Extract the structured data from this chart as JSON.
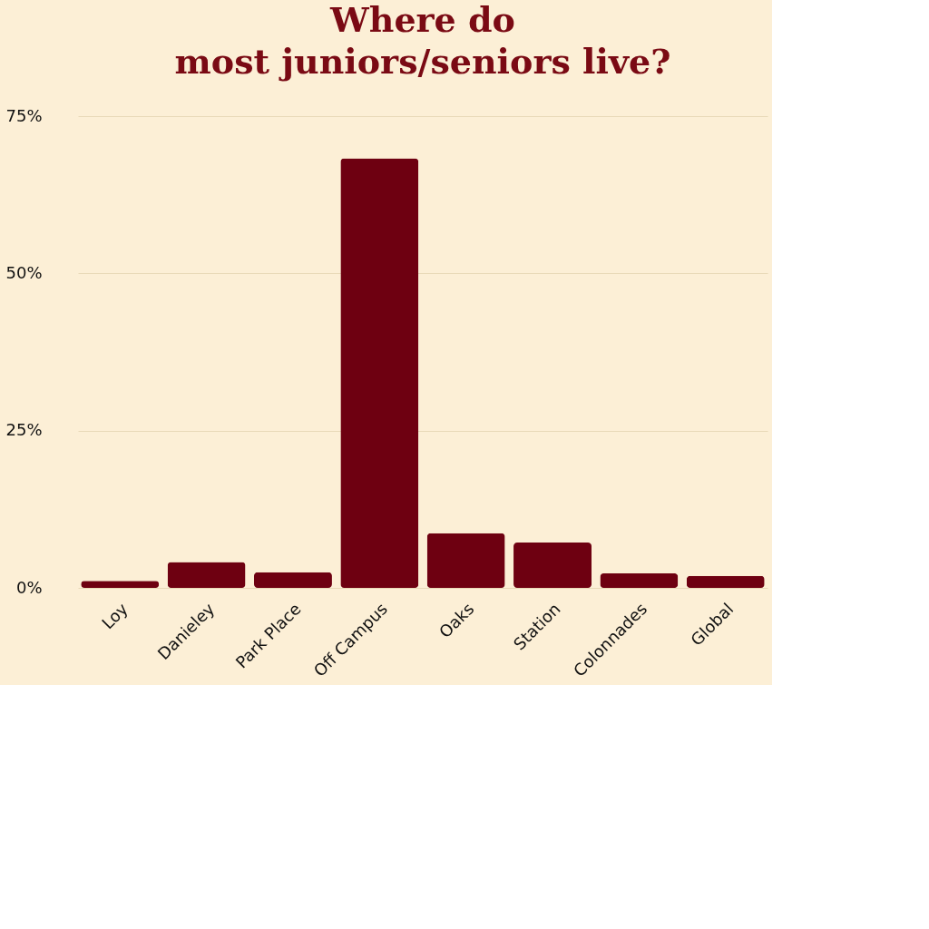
{
  "chart_data": {
    "type": "bar",
    "title": "Where do most juniors/seniors live?",
    "categories": [
      "Loy",
      "Danieley",
      "Park Place",
      "Off Campus",
      "Oaks",
      "Station",
      "Colonnades",
      "Global"
    ],
    "values": [
      1.1,
      4.1,
      2.5,
      68.3,
      8.7,
      7.2,
      2.3,
      1.9
    ],
    "color": "#6e0011",
    "ylim": [
      0,
      75
    ],
    "yticks": [
      {
        "value": 0,
        "label": "0%"
      },
      {
        "value": 25,
        "label": "25%"
      },
      {
        "value": 50,
        "label": "50%"
      },
      {
        "value": 75,
        "label": "75%"
      }
    ],
    "grid": "y"
  }
}
